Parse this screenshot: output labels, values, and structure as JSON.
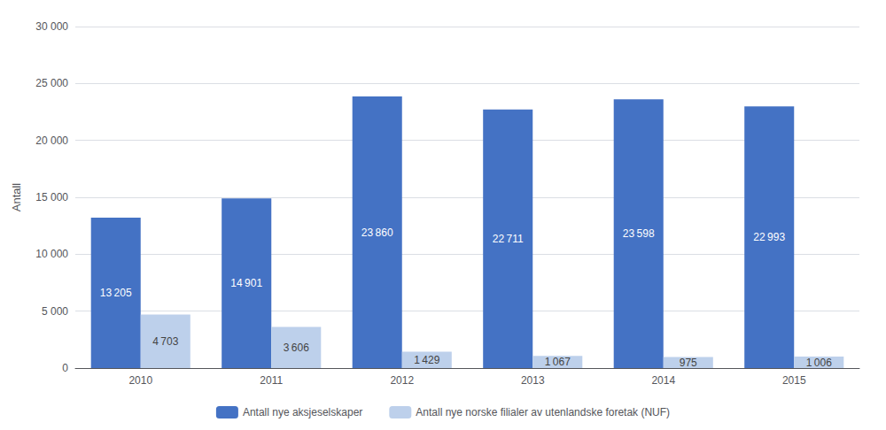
{
  "chart_data": {
    "type": "bar",
    "categories": [
      "2010",
      "2011",
      "2012",
      "2013",
      "2014",
      "2015"
    ],
    "ylabel": "Antall",
    "ylim": [
      0,
      30000
    ],
    "yticks": [
      0,
      {
        "value": 5000,
        "label": "5 000"
      },
      {
        "value": 10000,
        "label": "10 000"
      },
      {
        "value": 15000,
        "label": "15 000"
      },
      {
        "value": 20000,
        "label": "20 000"
      },
      {
        "value": 25000,
        "label": "25 000"
      },
      {
        "value": 30000,
        "label": "30 000"
      }
    ],
    "grid": true,
    "legend": "bottom",
    "data_labels": true,
    "series": [
      {
        "name": "Antall nye aksjeselskaper",
        "color": "#4472C4",
        "values": [
          13205,
          14901,
          23860,
          22711,
          23598,
          22993
        ],
        "value_labels": [
          "13 205",
          "14 901",
          "23 860",
          "22 711",
          "23 598",
          "22 993"
        ]
      },
      {
        "name": "Antall nye norske filialer av utenlandske foretak (NUF)",
        "color": "#BDD0EB",
        "values": [
          4703,
          3606,
          1429,
          1067,
          975,
          1006
        ],
        "value_labels": [
          "4 703",
          "3 606",
          "1 429",
          "1 067",
          "975",
          "1 006"
        ]
      }
    ]
  }
}
